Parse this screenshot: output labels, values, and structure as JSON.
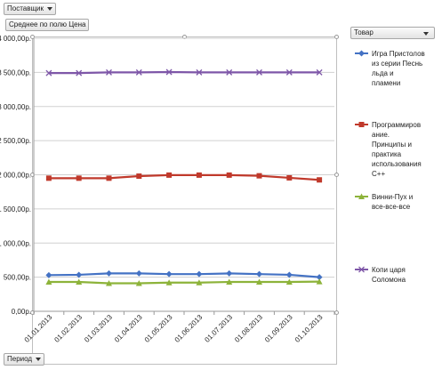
{
  "filters": {
    "supplier_label": "Поставщик",
    "value_field_label": "Среднее по полю Цена",
    "legend_field_label": "Товар",
    "axis_field_label": "Период"
  },
  "chart_data": {
    "type": "line",
    "categories": [
      "01.01.2013",
      "01.02.2013",
      "01.03.2013",
      "01.04.2013",
      "01.05.2013",
      "01.06.2013",
      "01.07.2013",
      "01.08.2013",
      "01.09.2013",
      "01.10.2013"
    ],
    "y_ticks": [
      "0,00р.",
      "500,00р.",
      "1 000,00р.",
      "1 500,00р.",
      "2 000,00р.",
      "2 500,00р.",
      "3 000,00р.",
      "3 500,00р.",
      "4 000,00р."
    ],
    "ylim": [
      0,
      4000
    ],
    "grid": "horizontal",
    "legend_position": "right",
    "series": [
      {
        "name": "Игра Пристолов из серии Песнь льда и пламени",
        "legend_lines": [
          "Игра Пристолов",
          "из серии Песнь",
          "льда и",
          "пламени"
        ],
        "color": "#4472c4",
        "marker": "diamond",
        "values": [
          530,
          535,
          555,
          555,
          545,
          545,
          555,
          545,
          535,
          500
        ]
      },
      {
        "name": "Программирование. Принципы и практика использования C++",
        "legend_lines": [
          "Программиров",
          "ание.",
          "Принципы и",
          "практика",
          "использования",
          "C++"
        ],
        "color": "#c0392b",
        "marker": "square",
        "values": [
          1950,
          1950,
          1950,
          1980,
          1995,
          1995,
          1995,
          1985,
          1955,
          1925
        ]
      },
      {
        "name": "Винни-Пух и все-все-все",
        "legend_lines": [
          "Винни-Пух и",
          "все-все-все"
        ],
        "color": "#8db33a",
        "marker": "triangle",
        "values": [
          430,
          430,
          410,
          410,
          420,
          420,
          430,
          430,
          430,
          435
        ]
      },
      {
        "name": "Копи царя Соломона",
        "legend_lines": [
          "Копи царя",
          "Соломона"
        ],
        "color": "#7e57a8",
        "marker": "x",
        "values": [
          3490,
          3490,
          3500,
          3500,
          3505,
          3500,
          3500,
          3500,
          3500,
          3500
        ]
      }
    ]
  }
}
